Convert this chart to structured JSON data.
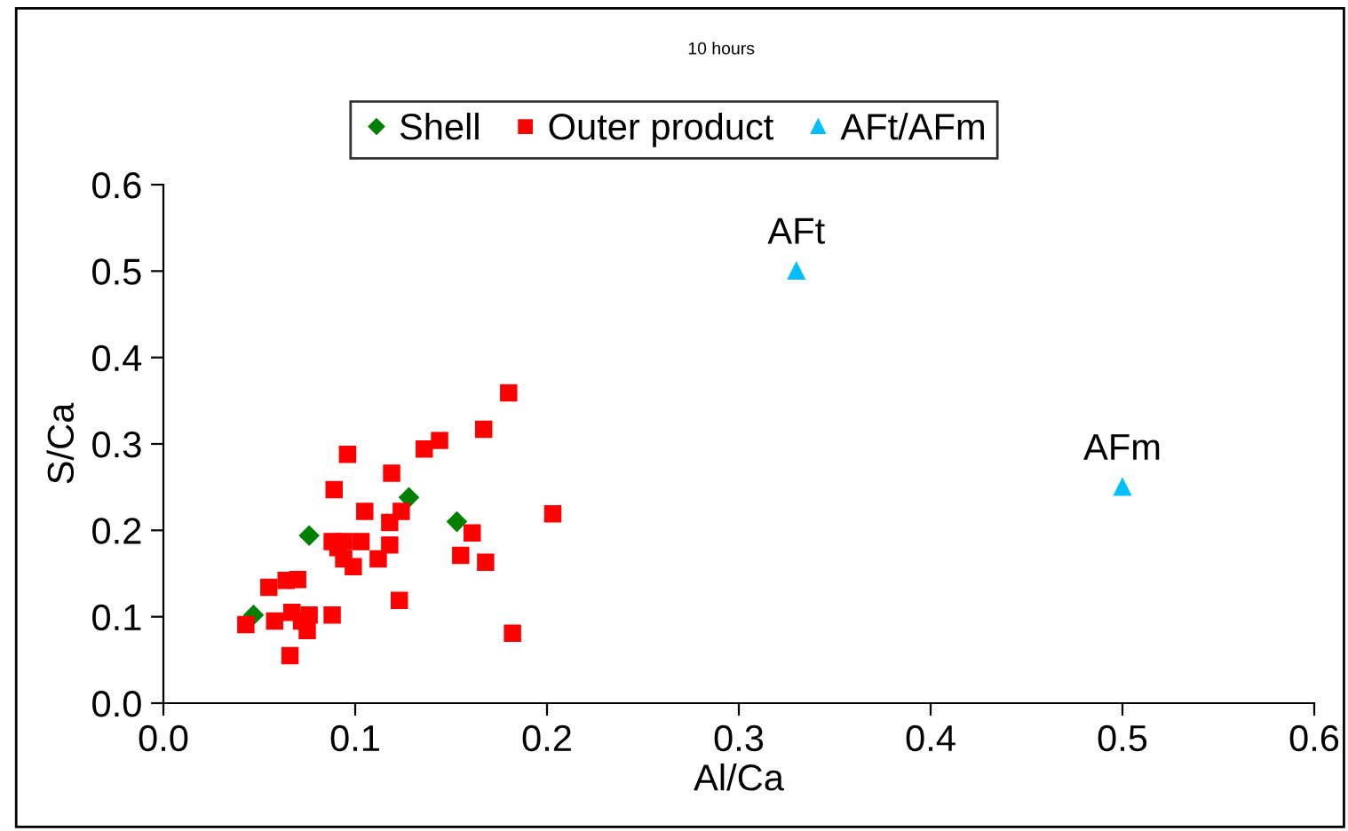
{
  "chart_data": {
    "type": "scatter",
    "title": "10 hours",
    "xlabel": "Al/Ca",
    "ylabel": "S/Ca",
    "xlim": [
      0,
      0.6
    ],
    "ylim": [
      0,
      0.6
    ],
    "xticks": [
      {
        "value": 0,
        "label": "0.0"
      },
      0.1,
      0.2,
      0.3,
      0.4,
      0.5,
      0.6
    ],
    "yticks": [
      {
        "value": 0,
        "label": "0.0"
      },
      0.1,
      0.2,
      0.3,
      0.4,
      0.5,
      0.6
    ],
    "grid": false,
    "legend": "top",
    "annotations": [
      {
        "text": "AFt",
        "x": 0.33,
        "y": 0.5
      },
      {
        "text": "AFm",
        "x": 0.5,
        "y": 0.25
      }
    ],
    "series": [
      {
        "name": "Shell",
        "color": "#008000",
        "marker": "diamond",
        "x": [
          0.047,
          0.076,
          0.128,
          0.153
        ],
        "values": [
          0.102,
          0.194,
          0.238,
          0.21
        ]
      },
      {
        "name": "Outer product",
        "color": "#ff0000",
        "marker": "square",
        "x": [
          0.043,
          0.055,
          0.064,
          0.07,
          0.058,
          0.067,
          0.076,
          0.072,
          0.075,
          0.066,
          0.088,
          0.096,
          0.089,
          0.088,
          0.094,
          0.091,
          0.094,
          0.099,
          0.103,
          0.105,
          0.112,
          0.118,
          0.118,
          0.124,
          0.119,
          0.123,
          0.136,
          0.144,
          0.167,
          0.18,
          0.161,
          0.155,
          0.168,
          0.182,
          0.203
        ],
        "values": [
          0.091,
          0.134,
          0.142,
          0.143,
          0.095,
          0.105,
          0.102,
          0.095,
          0.084,
          0.055,
          0.102,
          0.288,
          0.247,
          0.187,
          0.187,
          0.18,
          0.167,
          0.158,
          0.187,
          0.222,
          0.167,
          0.183,
          0.209,
          0.222,
          0.266,
          0.119,
          0.294,
          0.304,
          0.317,
          0.359,
          0.197,
          0.171,
          0.163,
          0.081,
          0.219
        ]
      },
      {
        "name": "AFt/AFm",
        "color": "#00bfff",
        "marker": "triangle",
        "x": [
          0.33,
          0.5
        ],
        "values": [
          0.5,
          0.25
        ]
      }
    ]
  }
}
